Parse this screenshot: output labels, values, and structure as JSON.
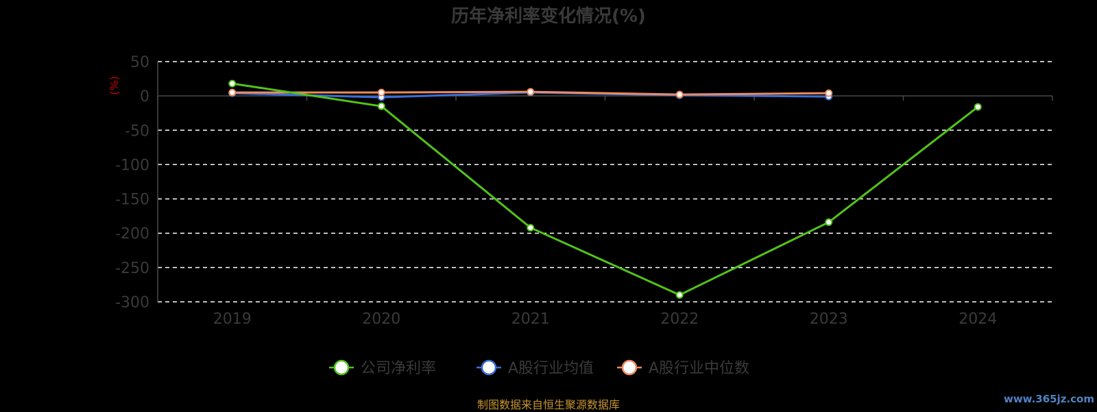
{
  "chart_data": {
    "type": "line",
    "title": "历年净利率变化情况(%)",
    "ylabel": "(%)",
    "x": [
      "2019",
      "2020",
      "2021",
      "2022",
      "2023",
      "2024"
    ],
    "ylim": [
      -300,
      50
    ],
    "yticks": [
      50,
      0,
      -50,
      -100,
      -150,
      -200,
      -250,
      -300
    ],
    "grid": true,
    "legend_position": "bottom",
    "series": [
      {
        "name": "公司净利率",
        "color": "#52c41a",
        "values": [
          18,
          -15,
          -192,
          -290,
          -184,
          -16
        ]
      },
      {
        "name": "A股行业均值",
        "color": "#3a6fd8",
        "values": [
          4,
          -2,
          5,
          1,
          -1,
          null
        ]
      },
      {
        "name": "A股行业中位数",
        "color": "#f08a5d",
        "values": [
          5,
          5,
          6,
          2,
          4,
          null
        ]
      }
    ]
  },
  "footer": {
    "source": "制图数据来自恒生聚源数据库",
    "watermark": "www.365jz.com"
  }
}
